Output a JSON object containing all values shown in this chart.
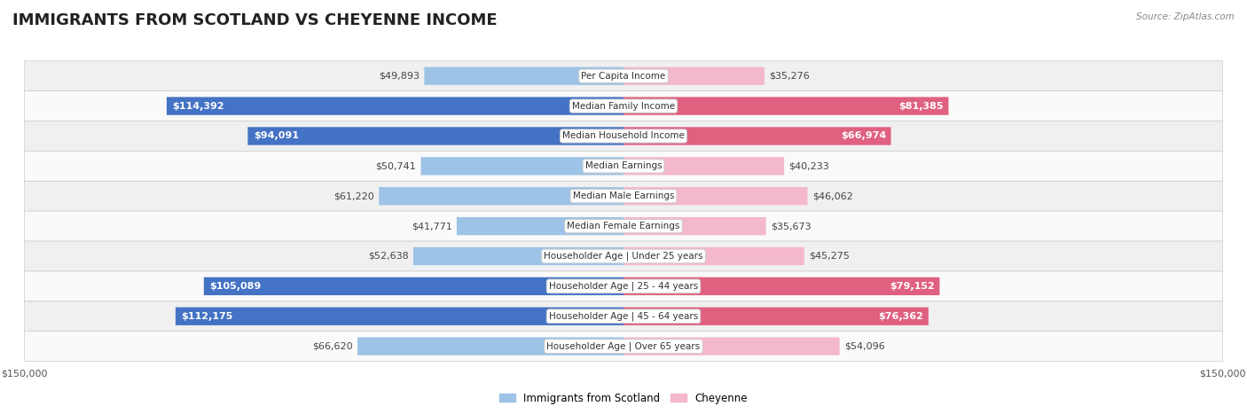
{
  "title": "IMMIGRANTS FROM SCOTLAND VS CHEYENNE INCOME",
  "source": "Source: ZipAtlas.com",
  "categories": [
    "Per Capita Income",
    "Median Family Income",
    "Median Household Income",
    "Median Earnings",
    "Median Male Earnings",
    "Median Female Earnings",
    "Householder Age | Under 25 years",
    "Householder Age | 25 - 44 years",
    "Householder Age | 45 - 64 years",
    "Householder Age | Over 65 years"
  ],
  "scotland_values": [
    49893,
    114392,
    94091,
    50741,
    61220,
    41771,
    52638,
    105089,
    112175,
    66620
  ],
  "cheyenne_values": [
    35276,
    81385,
    66974,
    40233,
    46062,
    35673,
    45275,
    79152,
    76362,
    54096
  ],
  "scotland_labels": [
    "$49,893",
    "$114,392",
    "$94,091",
    "$50,741",
    "$61,220",
    "$41,771",
    "$52,638",
    "$105,089",
    "$112,175",
    "$66,620"
  ],
  "cheyenne_labels": [
    "$35,276",
    "$81,385",
    "$66,974",
    "$40,233",
    "$46,062",
    "$35,673",
    "$45,275",
    "$79,152",
    "$76,362",
    "$54,096"
  ],
  "scotland_light_color": "#9dc3e6",
  "scotland_dark_color": "#4472c4",
  "cheyenne_light_color": "#f4b8cb",
  "cheyenne_dark_color": "#e06080",
  "max_value": 150000,
  "background_color": "#ffffff",
  "row_odd_color": "#f0f0f0",
  "row_even_color": "#fafafa",
  "legend_scotland": "Immigrants from Scotland",
  "legend_cheyenne": "Cheyenne",
  "title_fontsize": 13,
  "label_fontsize": 8,
  "cat_fontsize": 7.5,
  "axis_label_fontsize": 8,
  "scotland_inside_threshold": 80000,
  "cheyenne_inside_threshold": 60000
}
